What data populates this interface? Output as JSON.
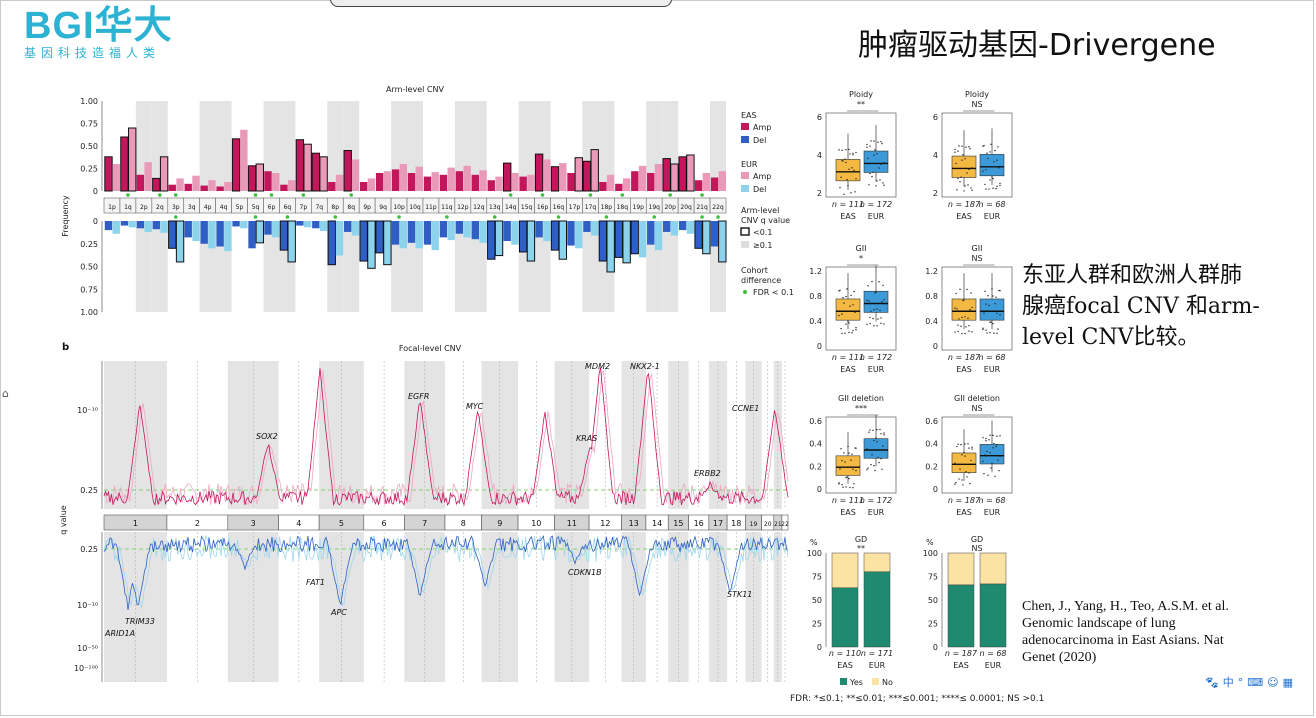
{
  "logo": {
    "brand": "BGI",
    "cn": "华大",
    "tagline": "基因科技造福人类",
    "color": "#2cb2d2"
  },
  "slide_title": "肿瘤驱动基因-Drivergene",
  "main_text": "东亚人群和欧洲人群肺腺癌focal CNV 和arm-level CNV比较。",
  "citation": "Chen, J., Yang, H., Teo, A.S.M. et al. Genomic landscape of lung adenocarcinoma in East Asians. Nat Genet (2020)",
  "fdr_note": "FDR: *≤0.1; **≤0.01; ***≤0.001; ****≤ 0.0001; NS >0.1",
  "tray_icons": [
    "paw-icon",
    "zh-input-icon",
    "punct-icon",
    "keyboard-icon",
    "user-icon",
    "grid-icon"
  ],
  "tray_text": "中",
  "figure": {
    "panel_b": "b",
    "freq_label": "Frequency",
    "q_label": "q value",
    "legend": {
      "eas": "EAS",
      "eur": "EUR",
      "amp": "Amp",
      "del": "Del",
      "arm_q_title_1": "Arm-level",
      "arm_q_title_2": "CNV q value",
      "q_lt": "<0.1",
      "q_ge": "≥0.1",
      "cohort_1": "Cohort",
      "cohort_2": "difference",
      "fdr_dot": "FDR < 0.1",
      "colors": {
        "eas_amp": "#c2185b",
        "eas_del": "#2f5fc4",
        "eur_amp": "#e89ab8",
        "eur_del": "#8ed3ec"
      }
    },
    "box_legend": {
      "yes": "Yes",
      "no": "No"
    }
  },
  "chart_data": [
    {
      "type": "bar",
      "title": "Arm-level CNV",
      "ylabel": "Frequency",
      "ylim": [
        0,
        1
      ],
      "yticks": [
        "1.00",
        "0.75",
        "0.50",
        "0.25",
        "0"
      ],
      "yticks_del": [
        "0",
        "0.25",
        "0.50",
        "0.75",
        "1.00"
      ],
      "categories": [
        "1p",
        "1q",
        "2p",
        "2q",
        "3p",
        "3q",
        "4p",
        "4q",
        "5p",
        "5q",
        "6p",
        "6q",
        "7p",
        "7q",
        "8p",
        "8q",
        "9p",
        "9q",
        "10p",
        "10q",
        "11p",
        "11q",
        "12p",
        "12q",
        "13q",
        "14q",
        "15q",
        "16p",
        "16q",
        "17p",
        "17q",
        "18p",
        "18q",
        "19p",
        "19q",
        "20p",
        "20q",
        "21q",
        "22q"
      ],
      "series": [
        {
          "name": "EAS Amp",
          "values": [
            0.38,
            0.6,
            0.18,
            0.14,
            0.07,
            0.08,
            0.06,
            0.05,
            0.58,
            0.28,
            0.22,
            0.07,
            0.57,
            0.42,
            0.1,
            0.45,
            0.1,
            0.2,
            0.24,
            0.2,
            0.16,
            0.18,
            0.22,
            0.18,
            0.12,
            0.31,
            0.16,
            0.41,
            0.27,
            0.2,
            0.33,
            0.1,
            0.08,
            0.22,
            0.2,
            0.36,
            0.38,
            0.12,
            0.15
          ]
        },
        {
          "name": "EUR Amp",
          "values": [
            0.3,
            0.7,
            0.32,
            0.38,
            0.14,
            0.17,
            0.12,
            0.1,
            0.68,
            0.3,
            0.2,
            0.12,
            0.52,
            0.38,
            0.18,
            0.35,
            0.14,
            0.22,
            0.3,
            0.27,
            0.21,
            0.26,
            0.28,
            0.23,
            0.16,
            0.2,
            0.18,
            0.35,
            0.31,
            0.37,
            0.46,
            0.18,
            0.14,
            0.28,
            0.3,
            0.3,
            0.4,
            0.2,
            0.22
          ]
        },
        {
          "name": "EAS Del",
          "values": [
            0.1,
            0.05,
            0.08,
            0.09,
            0.3,
            0.18,
            0.25,
            0.28,
            0.06,
            0.3,
            0.15,
            0.32,
            0.05,
            0.08,
            0.48,
            0.12,
            0.44,
            0.35,
            0.26,
            0.24,
            0.26,
            0.18,
            0.14,
            0.2,
            0.42,
            0.22,
            0.34,
            0.18,
            0.32,
            0.27,
            0.12,
            0.44,
            0.4,
            0.36,
            0.26,
            0.12,
            0.1,
            0.3,
            0.28
          ]
        },
        {
          "name": "EUR Del",
          "values": [
            0.14,
            0.07,
            0.12,
            0.13,
            0.45,
            0.22,
            0.3,
            0.33,
            0.08,
            0.24,
            0.18,
            0.45,
            0.07,
            0.11,
            0.38,
            0.16,
            0.52,
            0.48,
            0.3,
            0.3,
            0.32,
            0.21,
            0.18,
            0.24,
            0.38,
            0.26,
            0.44,
            0.22,
            0.42,
            0.3,
            0.16,
            0.56,
            0.46,
            0.4,
            0.32,
            0.16,
            0.14,
            0.36,
            0.45
          ]
        }
      ],
      "eas_amp_sig": [
        1,
        1,
        0,
        1,
        0,
        0,
        0,
        0,
        1,
        1,
        0,
        0,
        1,
        1,
        0,
        1,
        0,
        0,
        0,
        0,
        0,
        0,
        0,
        0,
        0,
        1,
        0,
        1,
        1,
        0,
        1,
        0,
        0,
        0,
        0,
        1,
        1,
        0,
        0
      ],
      "eur_amp_sig": [
        0,
        1,
        0,
        1,
        0,
        0,
        0,
        0,
        0,
        1,
        0,
        0,
        1,
        1,
        0,
        0,
        0,
        0,
        0,
        0,
        0,
        0,
        0,
        0,
        0,
        0,
        0,
        0,
        0,
        1,
        1,
        0,
        0,
        0,
        0,
        1,
        1,
        0,
        0
      ],
      "eas_del_sig": [
        0,
        0,
        0,
        0,
        1,
        0,
        0,
        0,
        0,
        0,
        0,
        1,
        0,
        0,
        1,
        0,
        1,
        1,
        0,
        0,
        0,
        0,
        0,
        0,
        1,
        0,
        1,
        0,
        1,
        0,
        0,
        1,
        1,
        1,
        0,
        0,
        0,
        1,
        0
      ],
      "eur_del_sig": [
        0,
        0,
        0,
        0,
        1,
        0,
        0,
        0,
        0,
        1,
        0,
        1,
        0,
        0,
        0,
        0,
        1,
        1,
        0,
        0,
        0,
        0,
        0,
        0,
        1,
        0,
        1,
        0,
        1,
        0,
        0,
        1,
        1,
        0,
        0,
        0,
        0,
        1,
        1
      ],
      "cohort_diff_amp": [
        "1q",
        "2q",
        "3p",
        "5q",
        "6p",
        "7p",
        "8q",
        "14q",
        "16p",
        "17q",
        "18q",
        "20p",
        "21q"
      ],
      "cohort_diff_del": [
        "3p",
        "5q",
        "6q",
        "8p",
        "10p",
        "11q",
        "13q",
        "16q",
        "18p",
        "19q",
        "21q",
        "22q"
      ]
    },
    {
      "type": "line",
      "title": "Focal-level CNV",
      "ylabel": "q value",
      "yticks_amp": [
        "10⁻¹⁰",
        "0.25"
      ],
      "yticks_del": [
        "0.25",
        "10⁻¹⁰",
        "10⁻⁵⁰",
        "10⁻¹⁰⁰"
      ],
      "chromosomes": [
        "1",
        "2",
        "3",
        "4",
        "5",
        "6",
        "7",
        "8",
        "9",
        "10",
        "11",
        "12",
        "13",
        "14",
        "15",
        "16",
        "17",
        "18",
        "19",
        "20",
        "21",
        "22"
      ],
      "amp_genes": [
        "SOX2",
        "EGFR",
        "MYC",
        "MDM2",
        "KRAS",
        "NKX2-1",
        "ERBB2",
        "CCNE1"
      ],
      "del_genes": [
        "ARID1A",
        "TRIM33",
        "FAT1",
        "APC",
        "CDKN1B",
        "STK11"
      ]
    },
    {
      "type": "box",
      "panels": [
        {
          "title": "Ploidy",
          "sig": "**",
          "yticks": [
            "6",
            "4",
            "2"
          ],
          "groups": [
            "EAS",
            "EUR"
          ],
          "n": [
            "n = 111",
            "n = 172"
          ]
        },
        {
          "title": "Ploidy",
          "sig": "NS",
          "yticks": [
            "6",
            "4",
            "2"
          ],
          "groups": [
            "EAS",
            "EUR"
          ],
          "n": [
            "n = 187",
            "n = 68"
          ]
        },
        {
          "title": "GII",
          "sig": "*",
          "yticks": [
            "1.2",
            "0.8",
            "0.4",
            "0"
          ],
          "groups": [
            "EAS",
            "EUR"
          ],
          "n": [
            "n = 111",
            "n = 172"
          ]
        },
        {
          "title": "GII",
          "sig": "NS",
          "yticks": [
            "1.2",
            "0.8",
            "0.4",
            "0"
          ],
          "groups": [
            "EAS",
            "EUR"
          ],
          "n": [
            "n = 187",
            "n = 68"
          ]
        },
        {
          "title": "GII deletion",
          "sig": "***",
          "yticks": [
            "0.6",
            "0.4",
            "0.2",
            "0"
          ],
          "groups": [
            "EAS",
            "EUR"
          ],
          "n": [
            "n = 111",
            "n = 172"
          ]
        },
        {
          "title": "GII deletion",
          "sig": "NS",
          "yticks": [
            "0.6",
            "0.4",
            "0.2",
            "0"
          ],
          "groups": [
            "EAS",
            "EUR"
          ],
          "n": [
            "n = 187",
            "n = 68"
          ]
        }
      ]
    },
    {
      "type": "bar",
      "stacked": true,
      "panels": [
        {
          "title": "GD",
          "sig": "**",
          "ylabel": "%",
          "yticks": [
            "100",
            "75",
            "50",
            "25",
            "0"
          ],
          "categories": [
            "EAS",
            "EUR"
          ],
          "n": [
            "n = 110",
            "n = 171"
          ],
          "yes": [
            63,
            80
          ]
        },
        {
          "title": "GD",
          "sig": "NS",
          "ylabel": "%",
          "yticks": [
            "100",
            "75",
            "50",
            "25",
            "0"
          ],
          "categories": [
            "EAS",
            "EUR"
          ],
          "n": [
            "n = 187",
            "n = 68"
          ],
          "yes": [
            66,
            67
          ]
        }
      ]
    }
  ]
}
